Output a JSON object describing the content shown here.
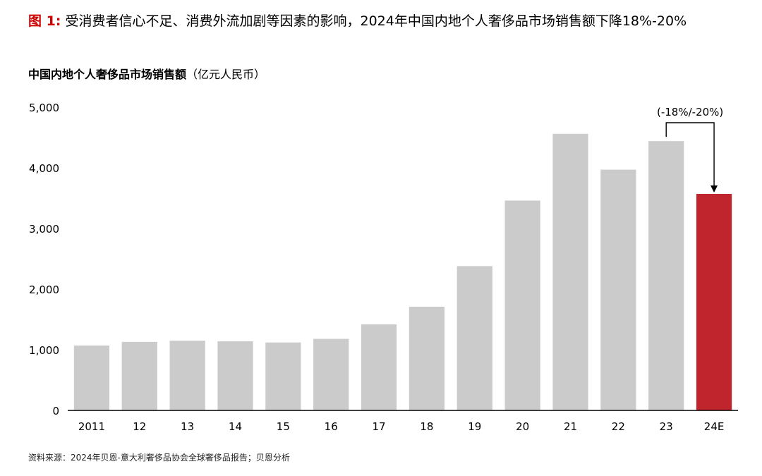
{
  "figure": {
    "label": "图 1:",
    "title": "受消费者信心不足、消费外流加剧等因素的影响，2024年中国内地个人奢侈品市场销售额下降18%-20%"
  },
  "source": "资料来源：2024年贝恩-意大利奢侈品协会全球奢侈品报告；贝恩分析",
  "chart_data": {
    "type": "bar",
    "title": "中国内地个人奢侈品市场销售额",
    "unit": "（亿元人民币）",
    "categories": [
      "2011",
      "12",
      "13",
      "14",
      "15",
      "16",
      "17",
      "18",
      "19",
      "20",
      "21",
      "22",
      "23",
      "24E"
    ],
    "values": [
      1070,
      1130,
      1150,
      1140,
      1120,
      1180,
      1420,
      1710,
      2380,
      3460,
      4560,
      3970,
      4440,
      3570
    ],
    "ylim": [
      0,
      5000
    ],
    "yticks": [
      0,
      1000,
      2000,
      3000,
      4000,
      5000
    ],
    "ytick_labels": [
      "0",
      "1,000",
      "2,000",
      "3,000",
      "4,000",
      "5,000"
    ],
    "grid": false,
    "annotation": {
      "text": "(-18%/-20%)",
      "from": "23",
      "to": "24E"
    },
    "colors": {
      "bar": "#cbcbcc",
      "highlight": "#c0242c",
      "highlight_category": "24E"
    }
  }
}
